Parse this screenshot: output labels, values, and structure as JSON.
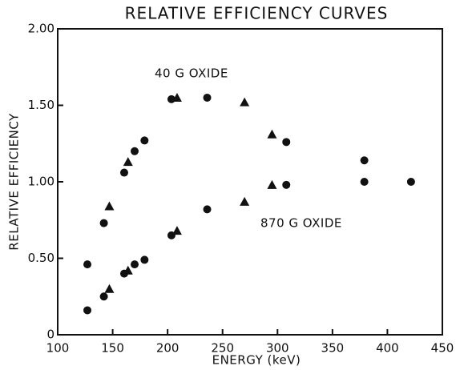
{
  "chart_data": {
    "type": "scatter",
    "title": "RELATIVE EFFICIENCY CURVES",
    "x_label": "ENERGY (keV)",
    "y_label": "RELATIVE EFFICIENCY",
    "xlim": [
      100,
      450
    ],
    "ylim": [
      0,
      2
    ],
    "xticks": [
      100,
      150,
      200,
      250,
      300,
      350,
      400,
      450
    ],
    "yticks": [
      0,
      {
        "value": 0.5,
        "label": "0.50"
      },
      {
        "value": 1,
        "label": "1.00"
      },
      {
        "value": 1.5,
        "label": "1.50"
      },
      {
        "value": 2,
        "label": "2.00"
      }
    ],
    "grid": false,
    "series": [
      {
        "name": "40 G OXIDE",
        "color": "#111111",
        "x": [
          127,
          142,
          147,
          160.5,
          164,
          170,
          179,
          203.5,
          208.6,
          236,
          270,
          295,
          308,
          379
        ],
        "values": [
          0.46,
          0.73,
          0.84,
          1.06,
          1.13,
          1.2,
          1.27,
          1.54,
          1.55,
          1.55,
          1.52,
          1.31,
          1.26,
          1.14
        ],
        "markers": [
          "circle",
          "circle",
          "triangle",
          "circle",
          "triangle",
          "circle",
          "circle",
          "circle",
          "triangle",
          "circle",
          "triangle",
          "triangle",
          "circle",
          "circle"
        ]
      },
      {
        "name": "870 G OXIDE",
        "color": "#111111",
        "x": [
          127,
          142,
          147,
          160.5,
          164,
          170,
          179,
          203.5,
          208.6,
          236,
          270,
          295,
          308,
          379,
          421.5
        ],
        "values": [
          0.16,
          0.25,
          0.3,
          0.4,
          0.42,
          0.46,
          0.49,
          0.65,
          0.68,
          0.82,
          0.87,
          0.98,
          0.98,
          1.0,
          1.0
        ],
        "markers": [
          "circle",
          "circle",
          "triangle",
          "circle",
          "triangle",
          "circle",
          "circle",
          "circle",
          "triangle",
          "circle",
          "triangle",
          "triangle",
          "circle",
          "circle",
          "circle"
        ]
      }
    ]
  }
}
